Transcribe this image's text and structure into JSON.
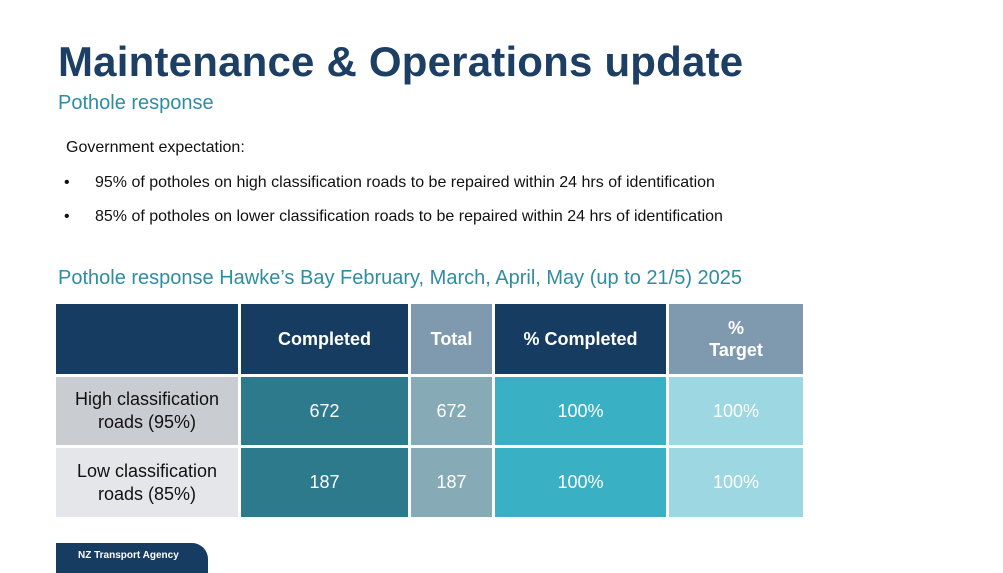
{
  "slide": {
    "title": "Maintenance & Operations update",
    "subtitle": "Pothole response",
    "intro": "Government expectation:",
    "bullet_marker": "•",
    "bullets": [
      "95% of potholes on high classification roads to be repaired within 24 hrs of identification",
      "85% of potholes on lower classification roads to be repaired within 24 hrs of identification"
    ]
  },
  "table": {
    "title": "Pothole response Hawke’s Bay February, March, April, May (up to 21/5) 2025",
    "headers": [
      "",
      "Completed",
      "Total",
      "% Completed",
      "% Target"
    ],
    "rows": [
      {
        "label": "High classification roads (95%)",
        "completed": "672",
        "total": "672",
        "pct_completed": "100%",
        "pct_target": "100%"
      },
      {
        "label": "Low classification roads (85%)",
        "completed": "187",
        "total": "187",
        "pct_completed": "100%",
        "pct_target": "100%"
      }
    ]
  },
  "footer": {
    "brand": "NZ Transport Agency"
  },
  "colors": {
    "title": "#1c3f63",
    "accent": "#2f8da2",
    "header_dark": "#173c62",
    "header_grey": "#7f9aae"
  }
}
